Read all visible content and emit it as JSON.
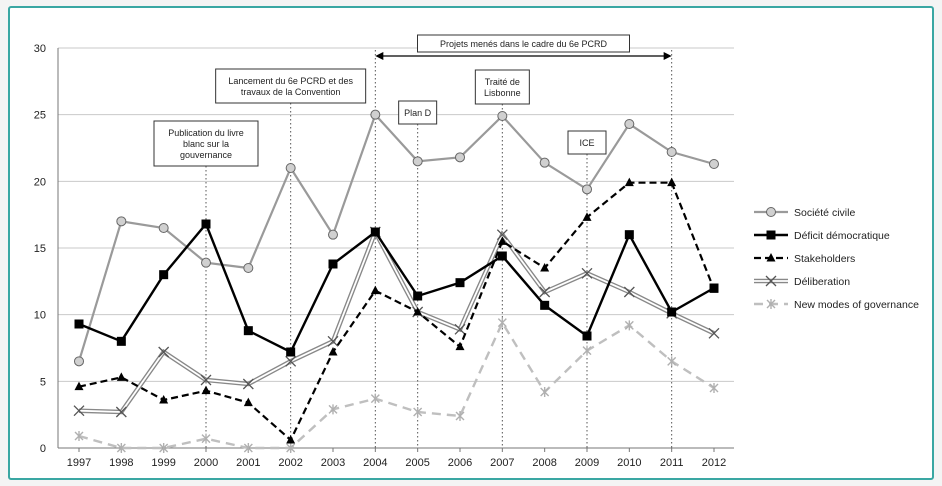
{
  "chart_data": {
    "type": "line",
    "x": [
      1997,
      1998,
      1999,
      2000,
      2001,
      2002,
      2003,
      2004,
      2005,
      2006,
      2007,
      2008,
      2009,
      2010,
      2011,
      2012
    ],
    "ylim": [
      0,
      30
    ],
    "yticks": [
      0,
      5,
      10,
      15,
      20,
      25,
      30
    ],
    "grid": true,
    "legend_position": "right",
    "series": [
      {
        "name": "Société civile",
        "values": [
          6.5,
          17.0,
          16.5,
          13.9,
          13.5,
          21.0,
          16.0,
          25.0,
          21.5,
          21.8,
          24.9,
          21.4,
          19.4,
          24.3,
          22.2,
          21.3
        ],
        "color": "#9a9a9a",
        "marker": "circle",
        "dash": "solid"
      },
      {
        "name": "Déficit démocratique",
        "values": [
          9.3,
          8.0,
          13.0,
          16.8,
          8.8,
          7.2,
          13.8,
          16.2,
          11.4,
          12.4,
          14.4,
          10.7,
          8.4,
          16.0,
          10.2,
          12.0
        ],
        "color": "#000000",
        "marker": "square",
        "dash": "solid"
      },
      {
        "name": "Stakeholders",
        "values": [
          4.6,
          5.3,
          3.6,
          4.3,
          3.4,
          0.6,
          7.2,
          11.8,
          10.2,
          7.6,
          15.5,
          13.5,
          17.3,
          19.9,
          19.9,
          11.9
        ],
        "color": "#000000",
        "marker": "triangle",
        "dash": "dashed"
      },
      {
        "name": "Déliberation",
        "values": [
          2.8,
          2.7,
          7.2,
          5.1,
          4.8,
          6.5,
          8.0,
          16.2,
          10.2,
          8.9,
          16.0,
          11.7,
          13.1,
          11.7,
          10.1,
          8.6
        ],
        "color": "#8a8a8a",
        "marker": "x",
        "dash": "double"
      },
      {
        "name": "New modes of governance",
        "values": [
          0.9,
          0.0,
          0.0,
          0.7,
          0.0,
          0.0,
          2.9,
          3.7,
          2.7,
          2.4,
          9.4,
          4.2,
          7.3,
          9.2,
          6.5,
          4.5
        ],
        "color": "#bfbfbf",
        "marker": "star",
        "dash": "dashed"
      }
    ],
    "annotations": [
      {
        "text": [
          "Publication du livre",
          "blanc sur la",
          "gouvernance"
        ],
        "year": 2000
      },
      {
        "text": [
          "Lancement du 6e PCRD et des",
          "travaux de la Convention"
        ],
        "year": 2002
      },
      {
        "text": [
          "Plan D"
        ],
        "year": 2005
      },
      {
        "text": [
          "Traité de",
          "Lisbonne"
        ],
        "year": 2007
      },
      {
        "text": [
          "ICE"
        ],
        "year": 2009
      },
      {
        "text": [
          "Projets menés dans le cadre du 6e PCRD"
        ],
        "from": 2004,
        "to": 2011
      }
    ]
  }
}
